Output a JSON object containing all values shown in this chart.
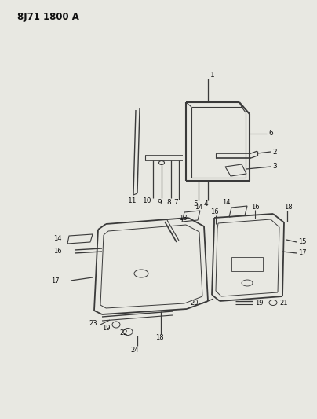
{
  "title": "8J71 1800 A",
  "bg_color": "#e8e8e2",
  "line_color": "#3a3a3a",
  "text_color": "#111111",
  "figsize": [
    4.04,
    5.33
  ],
  "dpi": 100
}
